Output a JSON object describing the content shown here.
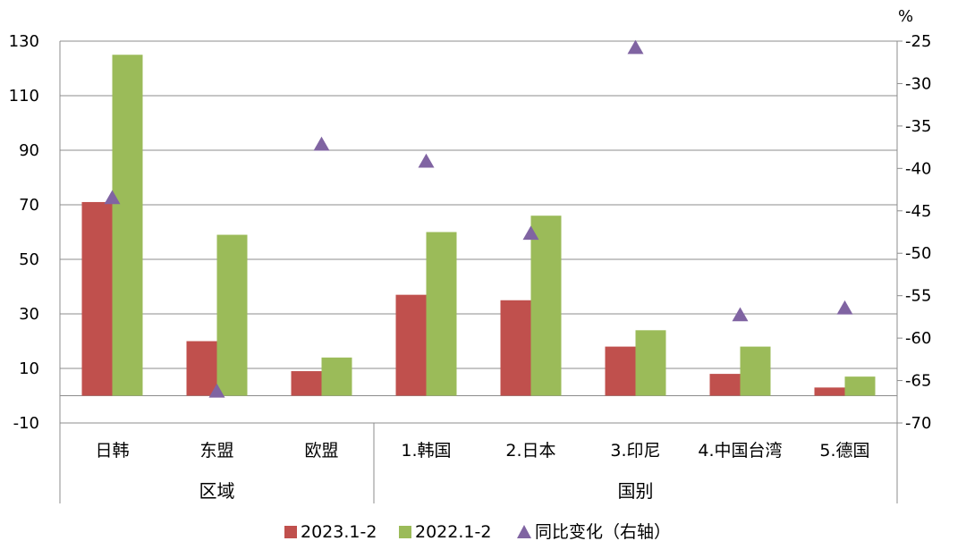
{
  "chart_data": {
    "type": "bar",
    "right_axis_unit": "%",
    "categories": [
      "日韩",
      "东盟",
      "欧盟",
      "1.韩国",
      "2.日本",
      "3.印尼",
      "4.中国台湾",
      "5.德国"
    ],
    "groups": [
      {
        "label": "区域",
        "categories": [
          "日韩",
          "东盟",
          "欧盟"
        ]
      },
      {
        "label": "国别",
        "categories": [
          "1.韩国",
          "2.日本",
          "3.印尼",
          "4.中国台湾",
          "5.德国"
        ]
      }
    ],
    "series": [
      {
        "name": "2023.1-2",
        "type": "bar",
        "axis": "left",
        "color": "#C0504D",
        "values": [
          71,
          20,
          9,
          37,
          35,
          18,
          8,
          3
        ]
      },
      {
        "name": "2022.1-2",
        "type": "bar",
        "axis": "left",
        "color": "#9BBB59",
        "values": [
          125,
          59,
          14,
          60,
          66,
          24,
          18,
          7
        ]
      },
      {
        "name": "同比变化（右轴）",
        "type": "scatter",
        "marker": "triangle",
        "axis": "right",
        "color": "#8064A2",
        "values": [
          -43.5,
          -66.3,
          -37.2,
          -39.2,
          -47.7,
          -25.8,
          -57.3,
          -56.5
        ]
      }
    ],
    "left_axis": {
      "min": -10,
      "max": 130,
      "ticks": [
        -10,
        10,
        30,
        50,
        70,
        90,
        110,
        130
      ]
    },
    "right_axis": {
      "min": -70,
      "max": -25,
      "ticks": [
        -25,
        -30,
        -35,
        -40,
        -45,
        -50,
        -55,
        -60,
        -65,
        -70
      ]
    },
    "grid": true,
    "legend_position": "bottom"
  }
}
